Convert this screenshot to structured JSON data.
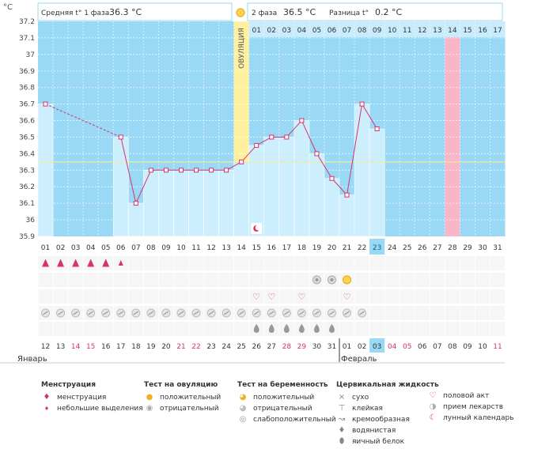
{
  "chart_data": {
    "type": "line",
    "unit_label": "°C",
    "ylim": [
      35.9,
      37.2
    ],
    "y_ticks": [
      "37.2",
      "37.1",
      "37",
      "36.9",
      "36.8",
      "36.7",
      "36.6",
      "36.5",
      "36.4",
      "36.3",
      "36.2",
      "36.1",
      "36",
      "35.9"
    ],
    "header": {
      "phase1_label": "Средняя t° 1 фаза",
      "phase1_value": "36.3 °C",
      "phase2_label": "2 фаза",
      "phase2_value": "36.5 °C",
      "diff_label": "Разница t°",
      "diff_value": "0.2 °C"
    },
    "ovulation_label": "ОВУЛЯЦИЯ",
    "ovulation_day": 14,
    "cover_line": 36.35,
    "luteal_days": [
      "01",
      "02",
      "03",
      "04",
      "05",
      "06",
      "07",
      "08",
      "09",
      "10",
      "11",
      "12",
      "13",
      "14",
      "15",
      "16",
      "17"
    ],
    "cycle_days": [
      "01",
      "02",
      "03",
      "04",
      "05",
      "06",
      "07",
      "08",
      "09",
      "10",
      "11",
      "12",
      "13",
      "14",
      "15",
      "16",
      "17",
      "18",
      "19",
      "20",
      "21",
      "22",
      "23",
      "24",
      "25",
      "26",
      "27",
      "28",
      "29",
      "30",
      "31"
    ],
    "today_cycle_day": 23,
    "highlight_cycle_day": 28,
    "temperatures": [
      36.7,
      null,
      null,
      null,
      null,
      36.5,
      36.1,
      36.3,
      36.3,
      36.3,
      36.3,
      36.3,
      36.3,
      36.35,
      36.45,
      36.5,
      36.5,
      36.6,
      36.4,
      36.25,
      36.15,
      36.7,
      36.55,
      null,
      null,
      null,
      null,
      null,
      null,
      null,
      null
    ],
    "dates": [
      "12",
      "13",
      "14",
      "15",
      "16",
      "17",
      "18",
      "19",
      "20",
      "21",
      "22",
      "23",
      "24",
      "25",
      "26",
      "27",
      "28",
      "29",
      "30",
      "31",
      "01",
      "02",
      "03",
      "04",
      "05",
      "06",
      "07",
      "08",
      "09",
      "10",
      "11"
    ],
    "red_date_indices": [
      2,
      3,
      9,
      10,
      16,
      17,
      23,
      24,
      30
    ],
    "today_date_index": 22,
    "month_jan": "Январь",
    "month_feb": "Февраль",
    "menstruation_days": [
      1,
      2,
      3,
      4,
      5,
      6
    ],
    "ovtest_days": [
      {
        "day": 19,
        "result": "negative"
      },
      {
        "day": 20,
        "result": "negative"
      },
      {
        "day": 21,
        "result": "positive"
      }
    ],
    "intercourse_days": [
      15,
      16,
      18,
      21
    ],
    "pregtest_days": [
      1,
      2,
      3,
      4,
      5,
      6,
      7,
      8,
      9,
      10,
      11,
      12,
      13,
      14,
      15,
      16,
      17,
      18,
      19,
      20,
      21,
      22
    ],
    "mucus_days": [
      15,
      16,
      17,
      18,
      19,
      20
    ],
    "lunar_day": 15
  },
  "legend": {
    "menstruation": {
      "title": "Менструация",
      "items": [
        "менструация",
        "небольшие выделения"
      ]
    },
    "ovulation_test": {
      "title": "Тест на овуляцию",
      "items": [
        "положительный",
        "отрицательный"
      ]
    },
    "pregnancy_test": {
      "title": "Тест на беременность",
      "items": [
        "положительный",
        "отрицательный",
        "слабоположительный"
      ]
    },
    "cervical": {
      "title": "Цервикальная жидкость",
      "items": [
        "сухо",
        "клейкая",
        "кремообразная",
        "водянистая",
        "яичный белок"
      ]
    },
    "other": {
      "items": [
        "половой акт",
        "прием лекарств",
        "лунный календарь"
      ]
    }
  },
  "colors": {
    "area": "#9ad9f6",
    "bar": "#cdeefd",
    "ovulation": "#fff0a0",
    "highlight": "#f8b6c8",
    "today": "#9ad9f6",
    "line": "#d6336c",
    "red": "#d6336c"
  }
}
